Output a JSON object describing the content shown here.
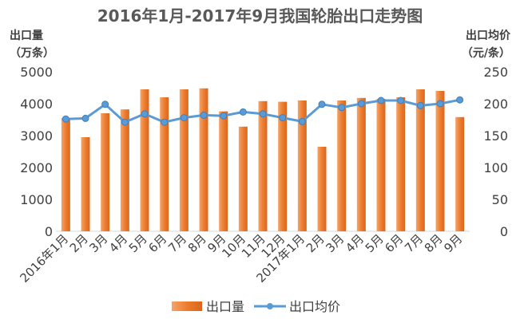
{
  "chart_data": {
    "type": "bar+line",
    "title": "2016年1月-2017年9月我国轮胎出口走势图",
    "ylabel_left": [
      "出口量",
      "（万条）"
    ],
    "ylabel_right": [
      "出口均价",
      "（元/条）"
    ],
    "ylim_left": [
      0,
      5000
    ],
    "ylim_right": [
      0,
      250
    ],
    "yticks_left": [
      0,
      1000,
      2000,
      3000,
      4000,
      5000
    ],
    "yticks_right": [
      0,
      50,
      100,
      150,
      200,
      250
    ],
    "categories": [
      "2016年1月",
      "2月",
      "3月",
      "4月",
      "5月",
      "6月",
      "7月",
      "8月",
      "9月",
      "10月",
      "11月",
      "12月",
      "2017年1月",
      "2月",
      "3月",
      "4月",
      "5月",
      "6月",
      "7月",
      "8月",
      "9月"
    ],
    "series": [
      {
        "name": "出口量",
        "type": "bar",
        "axis": "left",
        "color": "#ed7d31",
        "values": [
          3550,
          2950,
          3700,
          3820,
          4450,
          4200,
          4450,
          4480,
          3760,
          3280,
          4080,
          4060,
          4100,
          2650,
          4100,
          4180,
          4150,
          4200,
          4450,
          4400,
          3580
        ]
      },
      {
        "name": "出口均价",
        "type": "line",
        "axis": "right",
        "color": "#5b9bd5",
        "values": [
          176,
          177,
          199,
          171,
          184,
          171,
          178,
          182,
          181,
          187,
          184,
          178,
          172,
          199,
          194,
          200,
          205,
          205,
          197,
          200,
          206
        ]
      }
    ],
    "legend_position": "bottom",
    "grid": false
  }
}
